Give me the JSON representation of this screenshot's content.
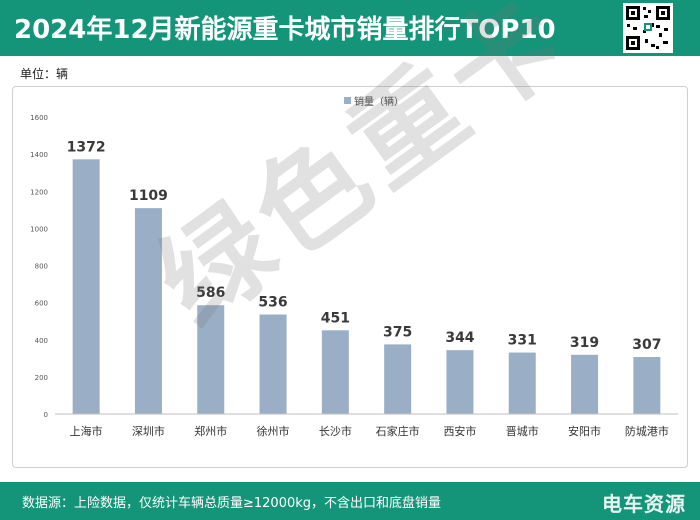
{
  "header": {
    "title": "2024年12月新能源重卡城市销量排行TOP10"
  },
  "unit_label": "单位：辆",
  "footer": {
    "note": "数据源：上险数据，仅统计车辆总质量≥12000kg，不含出口和底盘销量",
    "brand": "电车资源"
  },
  "watermark": "绿色重卡",
  "colors": {
    "header_bg": "#149579",
    "bar": "#9aafc6"
  },
  "chart_data": {
    "type": "bar",
    "title": "",
    "xlabel": "",
    "ylabel": "",
    "legend": "top-center",
    "grid": false,
    "ylim": [
      0,
      1600
    ],
    "yticks": [
      0,
      200,
      400,
      600,
      800,
      1000,
      1200,
      1400,
      1600
    ],
    "categories": [
      "上海市",
      "深圳市",
      "郑州市",
      "徐州市",
      "长沙市",
      "石家庄市",
      "西安市",
      "晋城市",
      "安阳市",
      "防城港市"
    ],
    "series": [
      {
        "name": "销量（辆）",
        "values": [
          1372,
          1109,
          586,
          536,
          451,
          375,
          344,
          331,
          319,
          307
        ]
      }
    ]
  }
}
